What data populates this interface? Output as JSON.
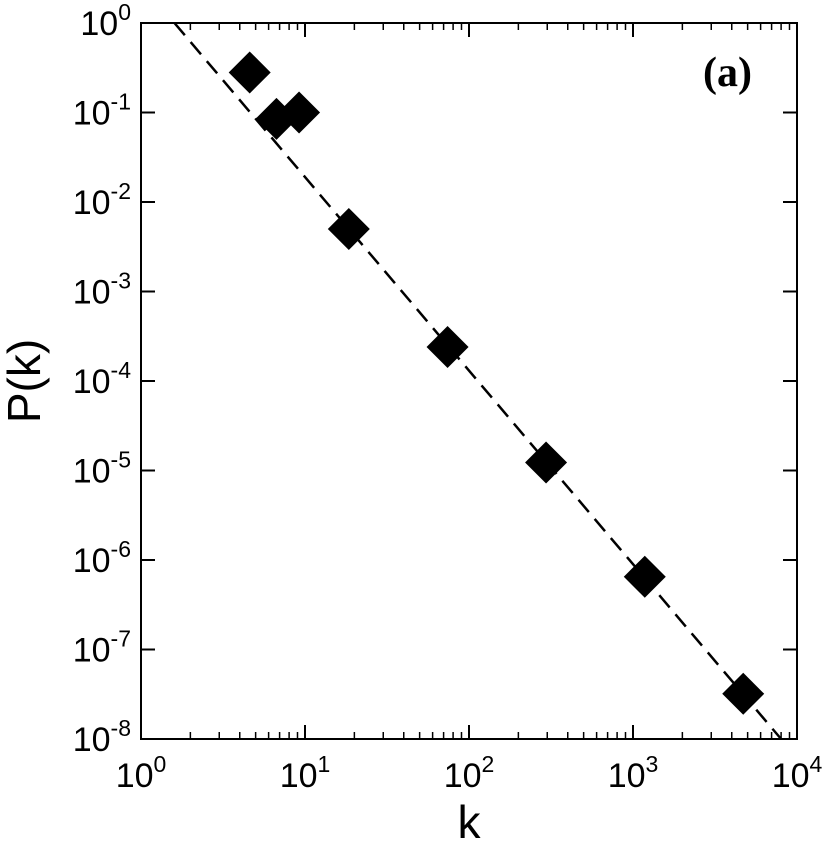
{
  "chart_data": {
    "type": "scatter",
    "title": "",
    "panel_label": "(a)",
    "xlabel": "k",
    "ylabel": "P(k)",
    "x_scale": "log",
    "y_scale": "log",
    "xlim": [
      1,
      10000
    ],
    "ylim": [
      1e-08,
      1
    ],
    "x_ticks": [
      {
        "value": 1,
        "base": "10",
        "exp": "0"
      },
      {
        "value": 10,
        "base": "10",
        "exp": "1"
      },
      {
        "value": 100,
        "base": "10",
        "exp": "2"
      },
      {
        "value": 1000,
        "base": "10",
        "exp": "3"
      },
      {
        "value": 10000,
        "base": "10",
        "exp": "4"
      }
    ],
    "y_ticks": [
      {
        "value": 1,
        "base": "10",
        "exp": "0"
      },
      {
        "value": 0.1,
        "base": "10",
        "exp": "-1"
      },
      {
        "value": 0.01,
        "base": "10",
        "exp": "-2"
      },
      {
        "value": 0.001,
        "base": "10",
        "exp": "-3"
      },
      {
        "value": 0.0001,
        "base": "10",
        "exp": "-4"
      },
      {
        "value": 1e-05,
        "base": "10",
        "exp": "-5"
      },
      {
        "value": 1e-06,
        "base": "10",
        "exp": "-6"
      },
      {
        "value": 1e-07,
        "base": "10",
        "exp": "-7"
      },
      {
        "value": 1e-08,
        "base": "10",
        "exp": "-8"
      }
    ],
    "grid": false,
    "legend": "none",
    "series": [
      {
        "marker": "diamond",
        "color": "#000000",
        "points": [
          {
            "x": 4.6,
            "y": 0.28
          },
          {
            "x": 6.7,
            "y": 0.085
          },
          {
            "x": 9.2,
            "y": 0.1
          },
          {
            "x": 18.5,
            "y": 0.005
          },
          {
            "x": 74,
            "y": 0.00024
          },
          {
            "x": 295,
            "y": 1.23e-05
          },
          {
            "x": 1180,
            "y": 6.5e-07
          },
          {
            "x": 4700,
            "y": 3.2e-08
          }
        ]
      }
    ],
    "fit_line": {
      "style": "dashed",
      "color": "#000000",
      "points": [
        {
          "x": 1.6,
          "y": 1.0
        },
        {
          "x": 8000,
          "y": 1e-08
        }
      ]
    }
  }
}
